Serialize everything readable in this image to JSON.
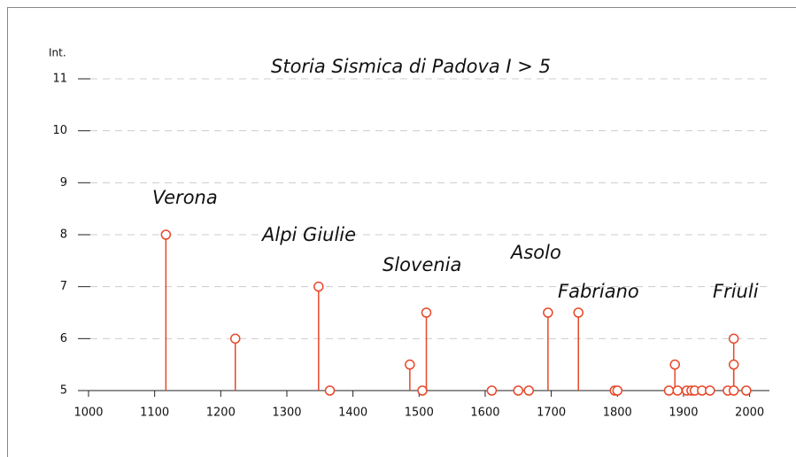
{
  "chart_data": {
    "type": "stem",
    "title": "Storia Sismica di Padova I > 5",
    "y_label": "Int.",
    "x": [
      1117,
      1222,
      1348,
      1365,
      1486,
      1505,
      1511,
      1610,
      1650,
      1666,
      1695,
      1741,
      1796,
      1800,
      1878,
      1887,
      1891,
      1905,
      1912,
      1917,
      1928,
      1940,
      1967,
      1976,
      1976,
      1976,
      1995
    ],
    "values": [
      8,
      6,
      7,
      5,
      5.5,
      5,
      6.5,
      5,
      5,
      5,
      6.5,
      6.5,
      5,
      5,
      5,
      5.5,
      5,
      5,
      5,
      5,
      5,
      5,
      5,
      6,
      5.5,
      5,
      5
    ],
    "color": "#e8472a",
    "annotations": [
      "Verona",
      "Alpi Giulie",
      "Slovenia",
      "Asolo",
      "Fabriano",
      "Friuli"
    ],
    "xlim": [
      1000,
      2030
    ],
    "xticks": [
      1000,
      1100,
      1200,
      1300,
      1400,
      1500,
      1600,
      1700,
      1800,
      1900,
      2000
    ],
    "ylim": [
      5,
      11
    ],
    "yticks": [
      5,
      6,
      7,
      8,
      9,
      10,
      11
    ],
    "grid": true
  }
}
